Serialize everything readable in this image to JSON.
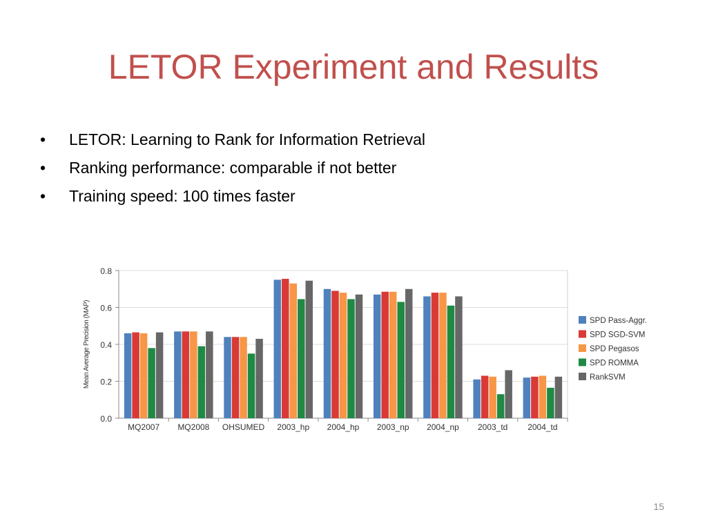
{
  "slide": {
    "title": "LETOR Experiment and Results",
    "bullets": [
      "LETOR: Learning to Rank for Information Retrieval",
      "Ranking performance: comparable if not better",
      "Training speed: 100 times faster"
    ],
    "bullet_symbol": "•",
    "page_number": "15",
    "title_color": "#c0504d"
  },
  "chart_data": {
    "type": "bar",
    "title": "",
    "xlabel": "",
    "ylabel": "Mean Average Precision (MAP)",
    "ylim": [
      0,
      0.8
    ],
    "yticks": [
      0.0,
      0.2,
      0.4,
      0.6,
      0.8
    ],
    "ytick_labels": [
      "0.0",
      "0.2",
      "0.4",
      "0.6",
      "0.8"
    ],
    "grid": true,
    "legend_position": "right",
    "categories": [
      "MQ2007",
      "MQ2008",
      "OHSUMED",
      "2003_hp",
      "2004_hp",
      "2003_np",
      "2004_np",
      "2003_td",
      "2004_td"
    ],
    "series": [
      {
        "name": "SPD Pass-Aggr.",
        "color": "#4f81bd",
        "values": [
          0.46,
          0.47,
          0.44,
          0.75,
          0.7,
          0.67,
          0.66,
          0.21,
          0.22
        ]
      },
      {
        "name": "SPD SGD-SVM",
        "color": "#d93a35",
        "values": [
          0.465,
          0.47,
          0.44,
          0.755,
          0.69,
          0.685,
          0.68,
          0.23,
          0.225
        ]
      },
      {
        "name": "SPD Pegasos",
        "color": "#f79646",
        "values": [
          0.46,
          0.47,
          0.44,
          0.73,
          0.68,
          0.685,
          0.68,
          0.225,
          0.23
        ]
      },
      {
        "name": "SPD ROMMA",
        "color": "#1f8a43",
        "values": [
          0.38,
          0.39,
          0.35,
          0.645,
          0.645,
          0.63,
          0.61,
          0.13,
          0.165
        ]
      },
      {
        "name": "RankSVM",
        "color": "#676767",
        "values": [
          0.465,
          0.47,
          0.43,
          0.745,
          0.67,
          0.7,
          0.66,
          0.26,
          0.225
        ]
      }
    ]
  }
}
